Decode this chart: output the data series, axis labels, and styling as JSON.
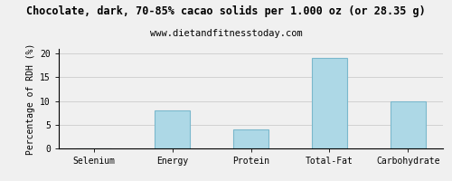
{
  "title": "Chocolate, dark, 70-85% cacao solids per 1.000 oz (or 28.35 g)",
  "subtitle": "www.dietandfitnesstoday.com",
  "categories": [
    "Selenium",
    "Energy",
    "Protein",
    "Total-Fat",
    "Carbohydrate"
  ],
  "values": [
    0,
    8,
    4,
    19,
    10
  ],
  "bar_color": "#add8e6",
  "bar_edge_color": "#7ab8cc",
  "ylabel": "Percentage of RDH (%)",
  "ylim": [
    0,
    21
  ],
  "yticks": [
    0,
    5,
    10,
    15,
    20
  ],
  "background_color": "#f0f0f0",
  "title_fontsize": 8.5,
  "subtitle_fontsize": 7.5,
  "tick_fontsize": 7,
  "ylabel_fontsize": 7,
  "grid_color": "#cccccc",
  "bar_width": 0.45
}
